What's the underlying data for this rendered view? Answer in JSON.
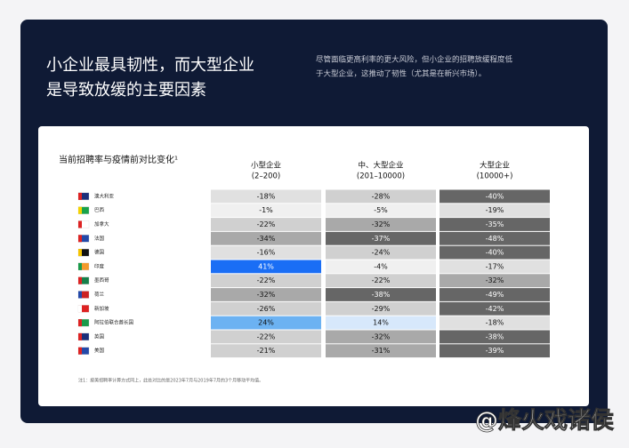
{
  "header": {
    "title_lines": [
      "小企业最具韧性，而大型企业",
      "是导致放缓的主要因素"
    ],
    "description_lines": [
      "尽管面临更高利率的更大风险，但小企业的招聘放缓程度低",
      "于大型企业，这推动了韧性（尤其是在新兴市场）。"
    ]
  },
  "table": {
    "title": "当前招聘率与疫情前对比变化¹",
    "columns": [
      [
        "小型企业",
        "(2–200)"
      ],
      [
        "中、大型企业",
        "(201–10000)"
      ],
      [
        "大型企业",
        "(10000+)"
      ]
    ],
    "rows": [
      {
        "name": "澳大利亚",
        "values": [
          "-18%",
          "-28%",
          "-40%"
        ]
      },
      {
        "name": "巴西",
        "values": [
          "-1%",
          "-5%",
          "-19%"
        ]
      },
      {
        "name": "加拿大",
        "values": [
          "-22%",
          "-32%",
          "-35%"
        ]
      },
      {
        "name": "法国",
        "values": [
          "-34%",
          "-37%",
          "-48%"
        ]
      },
      {
        "name": "德国",
        "values": [
          "-16%",
          "-24%",
          "-40%"
        ]
      },
      {
        "name": "印度",
        "values": [
          "41%",
          "-4%",
          "-17%"
        ]
      },
      {
        "name": "墨西哥",
        "values": [
          "-22%",
          "-22%",
          "-32%"
        ]
      },
      {
        "name": "荷兰",
        "values": [
          "-32%",
          "-38%",
          "-49%"
        ]
      },
      {
        "name": "新加坡",
        "values": [
          "-26%",
          "-29%",
          "-42%"
        ]
      },
      {
        "name": "阿拉伯联合酋长国",
        "values": [
          "24%",
          "14%",
          "-18%"
        ]
      },
      {
        "name": "英国",
        "values": [
          "-22%",
          "-32%",
          "-38%"
        ]
      },
      {
        "name": "美国",
        "values": [
          "-21%",
          "-31%",
          "-39%"
        ]
      }
    ],
    "footnote": "注1：按美招聘率计算方式同上，此处对比的是2023年7月与2019年7月的3个月移动平均值。"
  },
  "watermark": "@烽火戏诸侯"
}
